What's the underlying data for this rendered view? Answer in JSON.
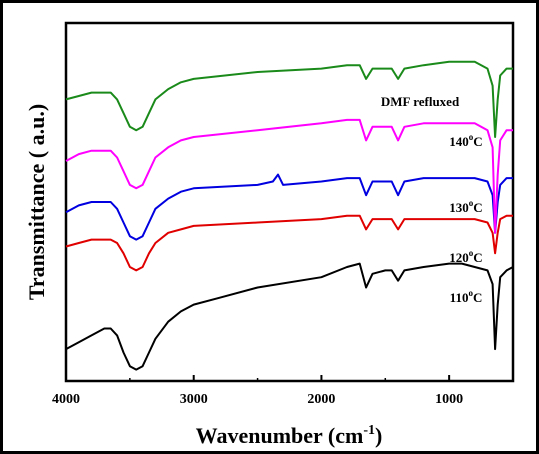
{
  "chart_data": {
    "type": "line",
    "xlabel": "Wavenumber (cm",
    "xlabel_sup": "-1",
    "xlabel_end": ")",
    "ylabel": "Transmittance ( a.u.)",
    "xlim": [
      4000,
      500
    ],
    "x_reversed": true,
    "x_ticks": [
      4000,
      3000,
      2000,
      1000
    ],
    "x_tick_labels": [
      "4000",
      "3000",
      "2000",
      "1000"
    ],
    "ylim": [
      0,
      100
    ],
    "y_ticks_shown": false,
    "grid": false,
    "series": [
      {
        "name": "110°C",
        "label_base": "110",
        "label_sup": "o",
        "label_unit": "C",
        "color": "#000000",
        "x": [
          4000,
          3900,
          3800,
          3700,
          3650,
          3600,
          3550,
          3500,
          3450,
          3400,
          3350,
          3300,
          3200,
          3100,
          3000,
          2800,
          2500,
          2000,
          1800,
          1700,
          1650,
          1600,
          1500,
          1450,
          1400,
          1350,
          1200,
          1000,
          900,
          800,
          700,
          660,
          640,
          620,
          600,
          550,
          500
        ],
        "y": [
          7,
          9,
          11,
          13,
          13,
          11,
          6,
          2,
          1,
          2,
          6,
          10,
          15,
          18,
          20,
          22,
          25,
          28,
          31,
          32,
          25,
          29,
          30,
          30,
          27,
          30,
          31,
          32,
          32,
          31,
          30,
          26,
          7,
          20,
          28,
          30,
          31
        ]
      },
      {
        "name": "120°C",
        "label_base": "120",
        "label_sup": "o",
        "label_unit": "C",
        "color": "#e00000",
        "x": [
          4000,
          3900,
          3800,
          3700,
          3650,
          3600,
          3550,
          3500,
          3450,
          3400,
          3350,
          3300,
          3200,
          3100,
          3000,
          2500,
          2000,
          1800,
          1700,
          1650,
          1600,
          1500,
          1450,
          1400,
          1350,
          1200,
          1000,
          800,
          700,
          660,
          640,
          620,
          600,
          550,
          500
        ],
        "y": [
          37,
          38,
          39,
          39,
          39,
          38,
          35,
          31,
          30,
          31,
          35,
          38,
          41,
          42,
          43,
          44,
          45,
          46,
          46,
          42,
          45,
          45,
          45,
          42,
          45,
          45,
          45,
          45,
          44,
          41,
          35,
          41,
          45,
          46,
          46
        ]
      },
      {
        "name": "130°C",
        "label_base": "130",
        "label_sup": "o",
        "label_unit": "C",
        "color": "#0000e0",
        "x": [
          4000,
          3900,
          3800,
          3700,
          3650,
          3600,
          3550,
          3500,
          3450,
          3400,
          3350,
          3300,
          3200,
          3100,
          3000,
          2500,
          2380,
          2340,
          2300,
          2000,
          1800,
          1700,
          1650,
          1600,
          1500,
          1450,
          1400,
          1350,
          1200,
          1000,
          800,
          700,
          660,
          640,
          620,
          600,
          550,
          500
        ],
        "y": [
          47,
          49,
          50,
          50,
          50,
          48,
          44,
          40,
          39,
          40,
          44,
          48,
          51,
          53,
          54,
          55,
          56,
          58,
          55,
          56,
          57,
          57,
          52,
          56,
          56,
          56,
          52,
          56,
          57,
          57,
          57,
          56,
          52,
          41,
          50,
          55,
          57,
          57
        ]
      },
      {
        "name": "140°C",
        "label_base": "140",
        "label_sup": "o",
        "label_unit": "C",
        "color": "#ff00ff",
        "x": [
          4000,
          3900,
          3800,
          3700,
          3650,
          3600,
          3550,
          3500,
          3450,
          3400,
          3350,
          3300,
          3200,
          3100,
          3000,
          2500,
          2000,
          1800,
          1700,
          1650,
          1600,
          1500,
          1450,
          1400,
          1350,
          1200,
          1000,
          800,
          700,
          660,
          640,
          620,
          600,
          550,
          500
        ],
        "y": [
          62,
          64,
          65,
          65,
          65,
          63,
          59,
          55,
          54,
          55,
          59,
          63,
          66,
          68,
          69,
          71,
          73,
          74,
          74,
          68,
          72,
          72,
          72,
          68,
          72,
          73,
          73,
          73,
          71,
          66,
          41,
          58,
          68,
          71,
          71
        ]
      },
      {
        "name": "DMF refluxed",
        "label_base": "DMF refluxed",
        "label_sup": "",
        "label_unit": "",
        "color": "#1a8a1a",
        "x": [
          4000,
          3900,
          3800,
          3700,
          3650,
          3600,
          3550,
          3500,
          3450,
          3400,
          3350,
          3300,
          3200,
          3100,
          3000,
          2500,
          2000,
          1800,
          1700,
          1650,
          1600,
          1500,
          1450,
          1400,
          1350,
          1200,
          1000,
          800,
          700,
          660,
          640,
          620,
          600,
          550,
          500
        ],
        "y": [
          80,
          81,
          82,
          82,
          82,
          80,
          76,
          72,
          71,
          72,
          76,
          80,
          83,
          85,
          86,
          88,
          89,
          90,
          90,
          86,
          89,
          89,
          89,
          86,
          89,
          90,
          91,
          91,
          89,
          84,
          69,
          80,
          87,
          89,
          89
        ]
      }
    ]
  }
}
